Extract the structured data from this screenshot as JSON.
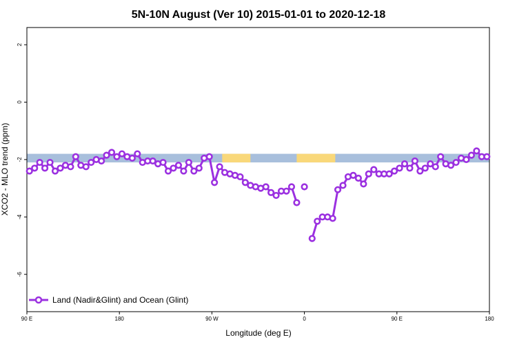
{
  "chart_data": {
    "type": "line",
    "title": "5N-10N August (Ver 10)   2015-01-01 to 2020-12-18",
    "xlabel": "Longitude (deg E)",
    "ylabel": "XCO2 - MLO trend (ppm)",
    "xlim": [
      90,
      450
    ],
    "ylim": [
      -7.3,
      2.6
    ],
    "x_ticks": [
      {
        "value": 90,
        "label": "90 E"
      },
      {
        "value": 162,
        "label": "180"
      },
      {
        "value": 234,
        "label": "90 W"
      },
      {
        "value": 306,
        "label": "0"
      },
      {
        "value": 378,
        "label": "90 E"
      },
      {
        "value": 450,
        "label": "180"
      }
    ],
    "y_ticks": [
      {
        "value": 2,
        "label": "2"
      },
      {
        "value": 0,
        "label": "0"
      },
      {
        "value": -2,
        "label": "-2"
      },
      {
        "value": -4,
        "label": "-4"
      },
      {
        "value": -6,
        "label": "-6"
      }
    ],
    "grid": false,
    "legend_position": "bottom-left",
    "band": {
      "y_top": -1.8,
      "y_bottom": -2.1,
      "ocean_color": "#a8bfdc",
      "land_color": "#f9d87a"
    },
    "land_segments_x": [
      [
        242,
        264
      ],
      [
        300,
        330
      ]
    ],
    "series": [
      {
        "name": "Land (Nadir&Glint) and Ocean (Glint)",
        "color": "#9b30e0",
        "segments": [
          {
            "x": [
              92,
              96,
              100,
              104,
              108,
              112,
              116,
              120,
              124,
              128,
              132,
              136,
              140,
              144,
              148,
              152,
              156,
              160,
              164,
              168,
              172,
              176,
              180,
              184,
              188,
              192,
              196,
              200,
              204,
              208,
              212,
              216,
              220,
              224,
              228,
              232,
              236,
              240,
              244,
              248,
              252,
              256,
              260,
              264,
              268,
              272,
              276,
              280,
              284,
              288,
              292,
              296,
              300
            ],
            "y": [
              -2.4,
              -2.3,
              -2.1,
              -2.3,
              -2.1,
              -2.4,
              -2.3,
              -2.2,
              -2.25,
              -1.9,
              -2.2,
              -2.25,
              -2.1,
              -2.0,
              -2.05,
              -1.85,
              -1.75,
              -1.9,
              -1.8,
              -1.9,
              -1.95,
              -1.8,
              -2.1,
              -2.05,
              -2.05,
              -2.15,
              -2.1,
              -2.4,
              -2.3,
              -2.2,
              -2.4,
              -2.1,
              -2.4,
              -2.3,
              -1.95,
              -1.9,
              -2.8,
              -2.25,
              -2.45,
              -2.5,
              -2.55,
              -2.6,
              -2.8,
              -2.9,
              -2.95,
              -3.0,
              -2.95,
              -3.15,
              -3.25,
              -3.1,
              -3.1,
              -2.95,
              -3.5
            ]
          },
          {
            "x": [
              306
            ],
            "y": [
              -2.95
            ]
          },
          {
            "x": [
              312,
              316,
              320,
              324,
              328,
              332,
              336,
              340,
              344,
              348,
              352,
              356,
              360,
              364,
              368,
              372,
              376,
              380,
              384,
              388,
              392,
              396,
              400,
              404,
              408,
              412,
              416,
              420,
              424,
              428,
              432,
              436,
              440,
              444,
              448
            ],
            "y": [
              -4.75,
              -4.15,
              -4.0,
              -4.0,
              -4.05,
              -3.05,
              -2.9,
              -2.6,
              -2.55,
              -2.65,
              -2.85,
              -2.5,
              -2.35,
              -2.5,
              -2.5,
              -2.5,
              -2.4,
              -2.3,
              -2.15,
              -2.3,
              -2.05,
              -2.4,
              -2.3,
              -2.15,
              -2.25,
              -1.9,
              -2.15,
              -2.2,
              -2.1,
              -1.95,
              -2.0,
              -1.85,
              -1.7,
              -1.9,
              -1.9
            ]
          }
        ]
      }
    ]
  }
}
